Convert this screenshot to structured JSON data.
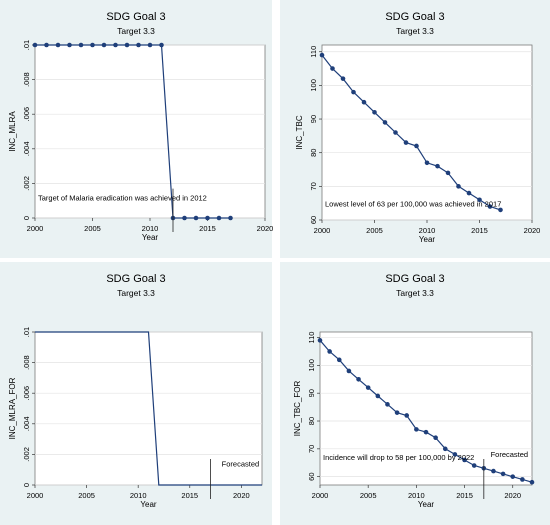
{
  "chart_data": [
    {
      "type": "line",
      "title": "SDG Goal 3",
      "subtitle": "Target 3.3",
      "xlabel": "Year",
      "ylabel": "INC_MLRA",
      "xlim": [
        2000,
        2020
      ],
      "ylim": [
        0,
        0.01
      ],
      "xticks": [
        "2000",
        "2005",
        "2010",
        "2015",
        "2020"
      ],
      "yticks": [
        "0",
        ".002",
        ".004",
        ".006",
        ".008",
        ".01"
      ],
      "markers": true,
      "x": [
        2000,
        2001,
        2002,
        2003,
        2004,
        2005,
        2006,
        2007,
        2008,
        2009,
        2010,
        2011,
        2012,
        2013,
        2014,
        2015,
        2016,
        2017
      ],
      "values": [
        0.01,
        0.01,
        0.01,
        0.01,
        0.01,
        0.01,
        0.01,
        0.01,
        0.01,
        0.01,
        0.01,
        0.01,
        0,
        0,
        0,
        0,
        0,
        0
      ],
      "vline": 2012,
      "annotation": {
        "text": "Target of Malaria eradication was achieved in 2012",
        "x": 2000,
        "y": 0.001
      }
    },
    {
      "type": "line",
      "title": "SDG Goal 3",
      "subtitle": "Target 3.3",
      "xlabel": "Year",
      "ylabel": "INC_TBC",
      "xlim": [
        2000,
        2020
      ],
      "ylim": [
        60,
        112
      ],
      "xticks": [
        "2000",
        "2005",
        "2010",
        "2015",
        "2020"
      ],
      "yticks": [
        "60",
        "70",
        "80",
        "90",
        "100",
        "110"
      ],
      "markers": true,
      "x": [
        2000,
        2001,
        2002,
        2003,
        2004,
        2005,
        2006,
        2007,
        2008,
        2009,
        2010,
        2011,
        2012,
        2013,
        2014,
        2015,
        2016,
        2017
      ],
      "values": [
        109,
        105,
        102,
        98,
        95,
        92,
        89,
        86,
        83,
        82,
        77,
        76,
        74,
        70,
        68,
        66,
        64,
        63
      ],
      "vline": null,
      "annotation": {
        "text": "Lowest level of 63 per 100,000 was achieved in 2017",
        "x": 2000,
        "y": 64
      }
    },
    {
      "type": "line",
      "title": "SDG Goal 3",
      "subtitle": "Target 3.3",
      "xlabel": "Year",
      "ylabel": "INC_MLRA_FOR",
      "xlim": [
        2000,
        2022
      ],
      "ylim": [
        0,
        0.01
      ],
      "xticks": [
        "2000",
        "2005",
        "2010",
        "2015",
        "2020"
      ],
      "yticks": [
        "0",
        ".002",
        ".004",
        ".006",
        ".008",
        ".01"
      ],
      "markers": false,
      "x": [
        2000,
        2001,
        2002,
        2003,
        2004,
        2005,
        2006,
        2007,
        2008,
        2009,
        2010,
        2011,
        2012,
        2013,
        2014,
        2015,
        2016,
        2017,
        2018,
        2019,
        2020,
        2021,
        2022
      ],
      "values": [
        0.01,
        0.01,
        0.01,
        0.01,
        0.01,
        0.01,
        0.01,
        0.01,
        0.01,
        0.01,
        0.01,
        0.01,
        0,
        0,
        0,
        0,
        0,
        0,
        0,
        0,
        0,
        0,
        0
      ],
      "vline": 2017,
      "annotation": {
        "text": "Forecasted",
        "x": 2017.8,
        "y": 0.0012
      }
    },
    {
      "type": "line",
      "title": "SDG Goal 3",
      "subtitle": "Target 3.3",
      "xlabel": "Year",
      "ylabel": "INC_TBC_FOR",
      "xlim": [
        2000,
        2022
      ],
      "ylim": [
        57,
        112
      ],
      "xticks": [
        "2000",
        "2005",
        "2010",
        "2015",
        "2020"
      ],
      "yticks": [
        "60",
        "70",
        "80",
        "90",
        "100",
        "110"
      ],
      "markers": true,
      "x": [
        2000,
        2001,
        2002,
        2003,
        2004,
        2005,
        2006,
        2007,
        2008,
        2009,
        2010,
        2011,
        2012,
        2013,
        2014,
        2015,
        2016,
        2017,
        2018,
        2019,
        2020,
        2021,
        2022
      ],
      "values": [
        109,
        105,
        102,
        98,
        95,
        92,
        89,
        86,
        83,
        82,
        77,
        76,
        74,
        70,
        68,
        66,
        64,
        63,
        62,
        61,
        60,
        59,
        58
      ],
      "vline": 2017,
      "annotation": {
        "text": "Incidence will drop to 58 per 100,000 by 2022",
        "x": 2000,
        "y": 66
      },
      "annotation2": {
        "text": "Forecasted",
        "x": 2017.7,
        "y": 67
      }
    }
  ]
}
